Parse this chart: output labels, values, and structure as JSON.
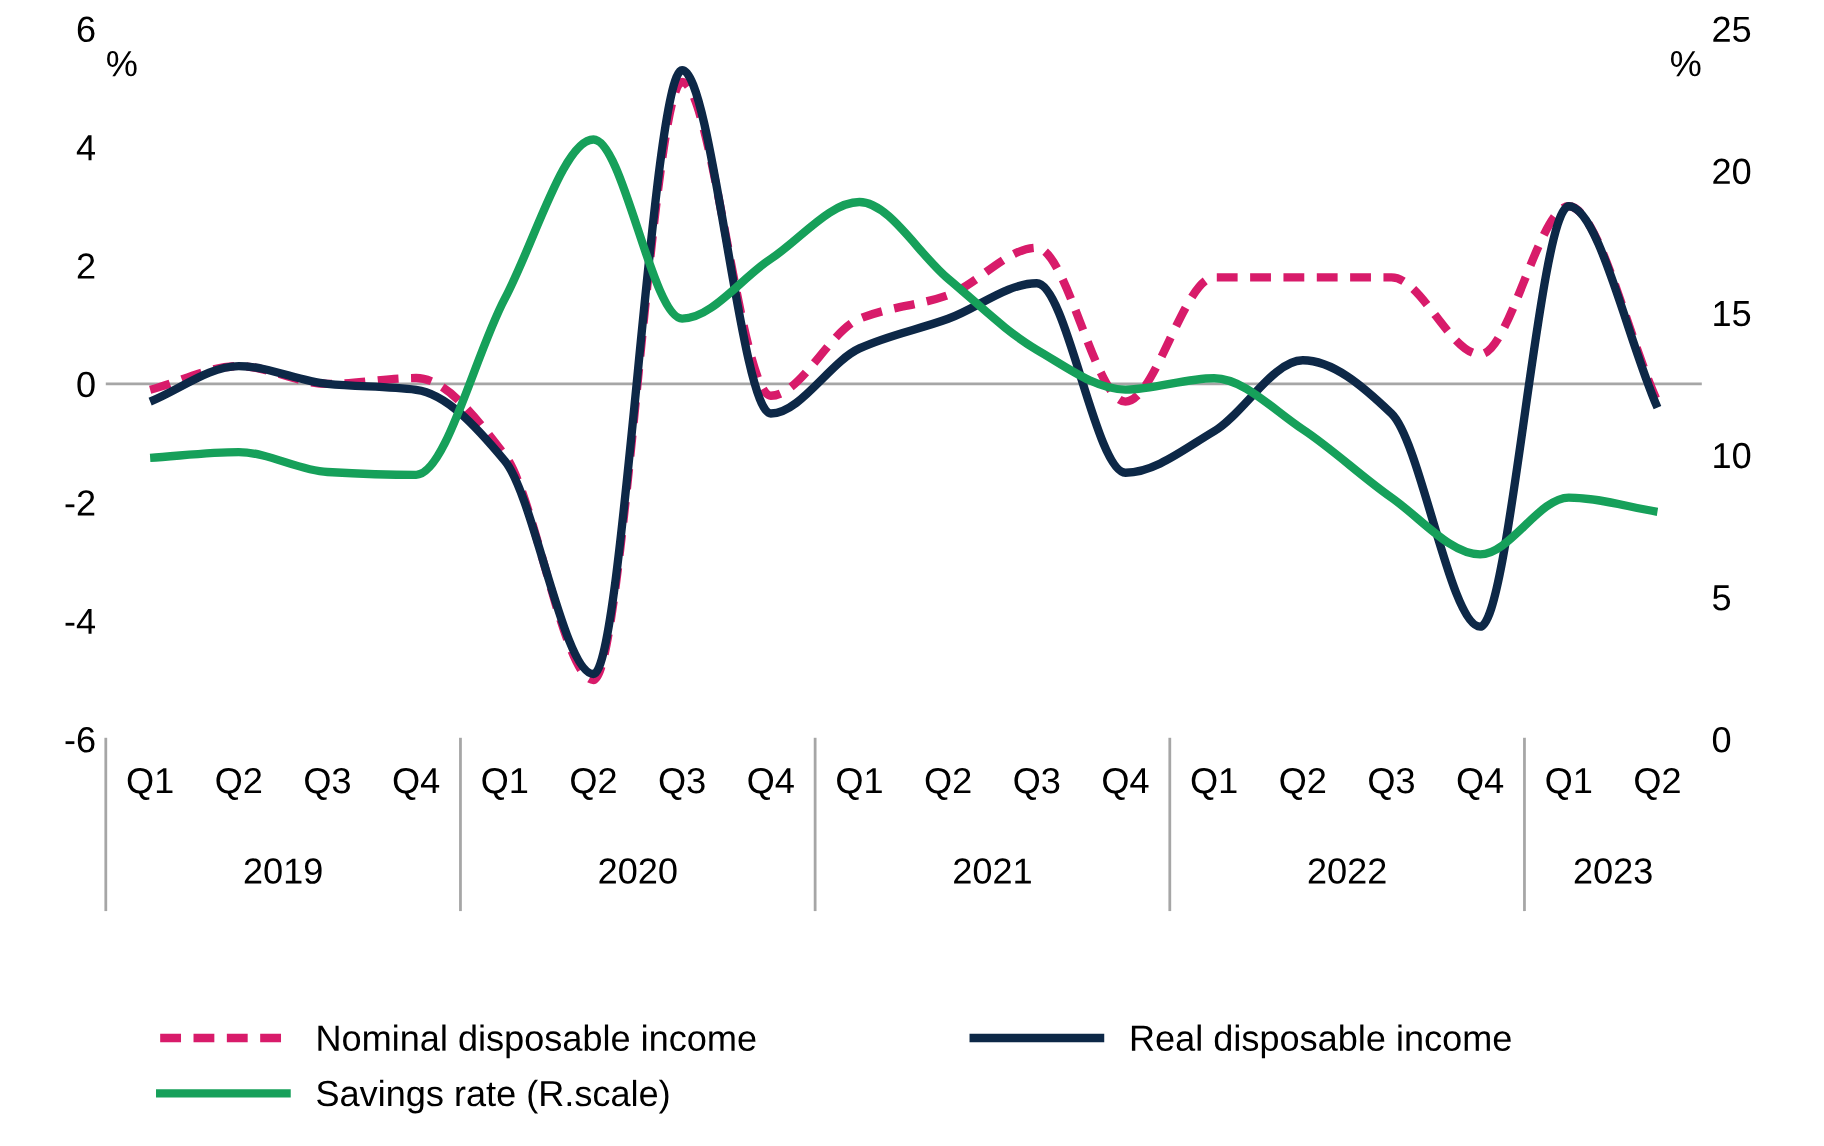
{
  "chart_data": {
    "type": "line",
    "ylabel": "%",
    "y2label": "%",
    "categories": [
      "Q1",
      "Q2",
      "Q3",
      "Q4",
      "Q1",
      "Q2",
      "Q3",
      "Q4",
      "Q1",
      "Q2",
      "Q3",
      "Q4",
      "Q1",
      "Q2",
      "Q3",
      "Q4",
      "Q1",
      "Q2"
    ],
    "annotations": [
      "2019",
      "2020",
      "2021",
      "2022",
      "2023"
    ],
    "series": [
      {
        "name": "Nominal disposable income",
        "color": "#d81b6a",
        "line_style": "dashed",
        "values": [
          -0.1,
          0.3,
          0.0,
          0.1,
          -1.2,
          -5.0,
          5.1,
          -0.2,
          1.1,
          1.5,
          2.3,
          -0.3,
          1.8,
          1.8,
          1.8,
          0.5,
          3.0,
          -0.3
        ]
      },
      {
        "name": "Real disposable income",
        "color": "#0d2847",
        "line_style": "solid",
        "values": [
          -0.3,
          0.3,
          0.0,
          -0.1,
          -1.3,
          -4.9,
          5.3,
          -0.5,
          0.6,
          1.1,
          1.7,
          -1.5,
          -0.8,
          0.4,
          -0.5,
          -4.1,
          3.0,
          -0.4
        ]
      },
      {
        "name": "Savings rate (R.scale)",
        "color": "#16a05a",
        "line_style": "solid",
        "axis": "y2",
        "values": [
          9.9,
          10.1,
          9.4,
          9.3,
          15.5,
          21.1,
          14.8,
          16.9,
          18.9,
          16.2,
          13.7,
          12.3,
          12.7,
          10.9,
          8.5,
          6.5,
          8.5,
          8.0
        ]
      }
    ],
    "ylim": [
      -6,
      6
    ],
    "yticks": [
      -6,
      -4,
      -2,
      0,
      2,
      4,
      6
    ],
    "y2lim": [
      0,
      25
    ],
    "y2ticks": [
      0,
      5,
      10,
      15,
      20,
      25
    ],
    "ref_lines": [
      {
        "axis": "y",
        "value": 0,
        "color": "#a6a6a6"
      }
    ],
    "grid": false,
    "legend": "bottom",
    "marker": "none"
  }
}
